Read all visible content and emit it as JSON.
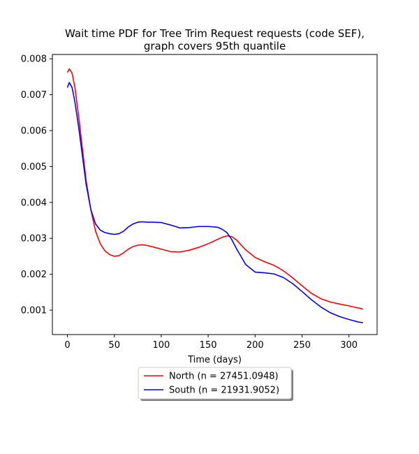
{
  "chart_data": {
    "type": "line",
    "title": "Wait time PDF for Tree Trim Request  requests (code SEF),\ngraph covers 95th quantile",
    "xlabel": "Time (days)",
    "ylabel": "",
    "xlim": [
      -16,
      330
    ],
    "ylim": [
      0.00032,
      0.00812
    ],
    "xticks": [
      0,
      50,
      100,
      150,
      200,
      250,
      300
    ],
    "yticks": [
      0.001,
      0.002,
      0.003,
      0.004,
      0.005,
      0.006,
      0.007,
      0.008
    ],
    "ytick_labels": [
      "0.001",
      "0.002",
      "0.003",
      "0.004",
      "0.005",
      "0.006",
      "0.007",
      "0.008"
    ],
    "grid": false,
    "legend_position": "below",
    "series": [
      {
        "name": "North (n = 27451.0948)",
        "color": "#ff0000",
        "x": [
          0,
          2,
          5,
          8,
          12,
          16,
          20,
          25,
          30,
          35,
          40,
          45,
          50,
          55,
          60,
          65,
          70,
          75,
          80,
          85,
          90,
          100,
          110,
          120,
          130,
          140,
          150,
          160,
          165,
          170,
          175,
          180,
          190,
          200,
          210,
          220,
          230,
          240,
          250,
          260,
          270,
          280,
          290,
          300,
          310,
          315
        ],
        "y": [
          0.00762,
          0.00772,
          0.0076,
          0.0072,
          0.0064,
          0.0055,
          0.0046,
          0.0038,
          0.0032,
          0.00285,
          0.00265,
          0.00255,
          0.0025,
          0.00252,
          0.0026,
          0.0027,
          0.00277,
          0.00281,
          0.00282,
          0.0028,
          0.00277,
          0.0027,
          0.00263,
          0.00262,
          0.00267,
          0.00275,
          0.00285,
          0.00297,
          0.00303,
          0.00307,
          0.00305,
          0.00296,
          0.00268,
          0.00247,
          0.00235,
          0.00225,
          0.0021,
          0.0019,
          0.00168,
          0.00147,
          0.00132,
          0.00123,
          0.00117,
          0.00112,
          0.00106,
          0.00103
        ]
      },
      {
        "name": "South (n = 21931.9052)",
        "color": "#0000ff",
        "x": [
          0,
          2,
          5,
          8,
          12,
          16,
          20,
          25,
          30,
          35,
          40,
          45,
          50,
          55,
          60,
          65,
          70,
          75,
          80,
          85,
          90,
          100,
          110,
          120,
          130,
          140,
          150,
          160,
          165,
          170,
          175,
          180,
          190,
          200,
          210,
          220,
          230,
          240,
          250,
          260,
          270,
          280,
          290,
          300,
          310,
          315
        ],
        "y": [
          0.0072,
          0.00734,
          0.0072,
          0.0068,
          0.0061,
          0.0053,
          0.0045,
          0.0038,
          0.0034,
          0.00323,
          0.00316,
          0.00313,
          0.00311,
          0.00313,
          0.0032,
          0.00332,
          0.0034,
          0.00345,
          0.00346,
          0.00345,
          0.00345,
          0.00344,
          0.00337,
          0.00329,
          0.0033,
          0.00333,
          0.00333,
          0.00331,
          0.00325,
          0.00316,
          0.00297,
          0.00272,
          0.00227,
          0.00206,
          0.00204,
          0.00201,
          0.00191,
          0.00174,
          0.00152,
          0.00129,
          0.00109,
          0.00093,
          0.00082,
          0.00074,
          0.00067,
          0.00065
        ]
      }
    ]
  }
}
